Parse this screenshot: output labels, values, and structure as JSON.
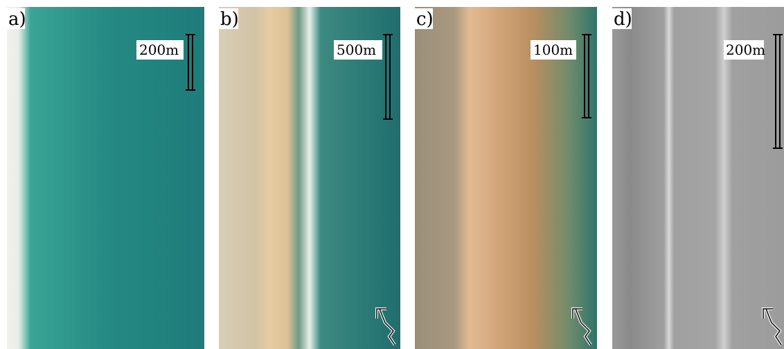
{
  "panels": [
    {
      "label": "a)",
      "scale": "200m"
    },
    {
      "label": "b)",
      "scale": "500m"
    },
    {
      "label": "c)",
      "scale": "100m"
    },
    {
      "label": "d)",
      "scale": "200m"
    }
  ]
}
